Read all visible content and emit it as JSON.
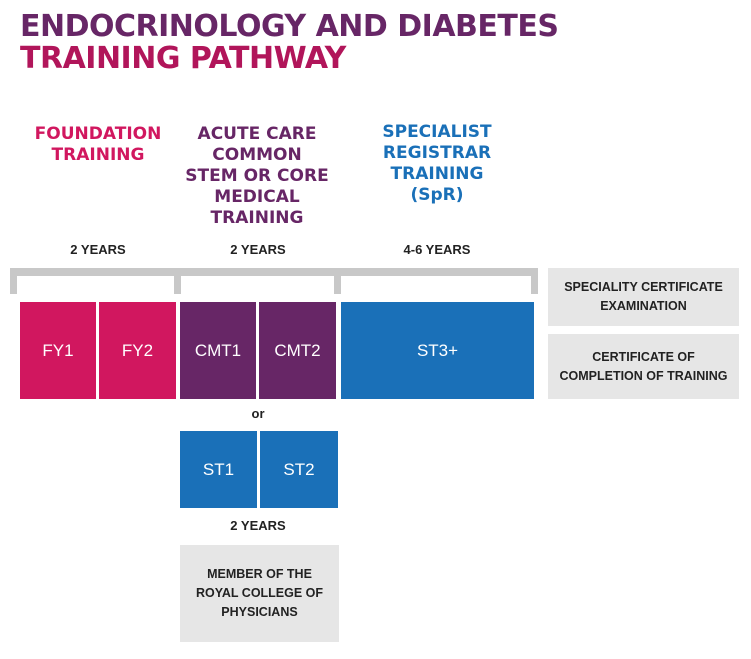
{
  "title": {
    "line1": "ENDOCRINOLOGY AND DIABETES",
    "line2": "TRAINING PATHWAY"
  },
  "colors": {
    "purple": "#672666",
    "magenta": "#d1175f",
    "blue": "#1a70b8",
    "grey": "#e6e6e6"
  },
  "stages": {
    "foundation": {
      "line1": "FOUNDATION",
      "line2": "TRAINING",
      "years": "2 YEARS"
    },
    "core": {
      "line1": "ACUTE CARE",
      "line2": "COMMON",
      "line3": "STEM OR CORE",
      "line4": "MEDICAL",
      "line5": "TRAINING",
      "years": "2 YEARS"
    },
    "specialist": {
      "line1": "SPECIALIST",
      "line2": "REGISTRAR",
      "line3": "TRAINING",
      "line4": "(SpR)",
      "years": "4-6 YEARS"
    }
  },
  "blocks": {
    "fy1": "FY1",
    "fy2": "FY2",
    "cmt1": "CMT1",
    "cmt2": "CMT2",
    "st3": "ST3+",
    "st1": "ST1",
    "st2": "ST2"
  },
  "or_label": "or",
  "alt_years": "2 YEARS",
  "boxes": {
    "speciality": {
      "line1": "SPECIALITY CERTIFICATE",
      "line2": "EXAMINATION"
    },
    "completion": {
      "line1": "CERTIFICATE OF",
      "line2": "COMPLETION OF TRAINING"
    },
    "member": {
      "line1": "MEMBER OF THE",
      "line2": "ROYAL COLLEGE OF",
      "line3": "PHYSICIANS"
    }
  }
}
